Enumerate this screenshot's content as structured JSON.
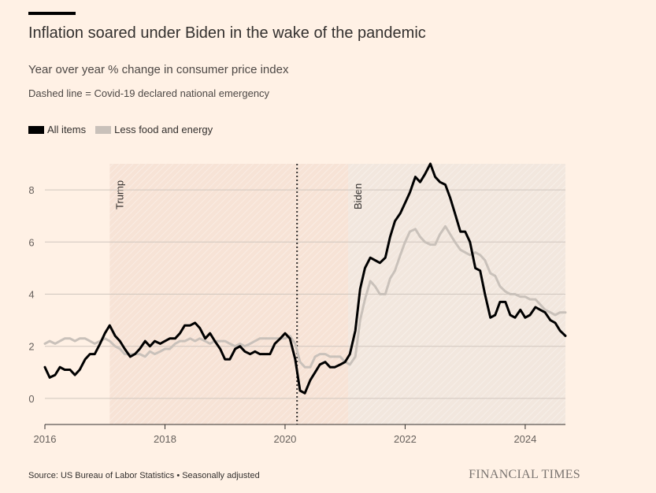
{
  "header": {
    "title": "Inflation soared under Biden in the wake of the pandemic",
    "subtitle": "Year over year % change in consumer price index",
    "note": "Dashed line = Covid-19 declared national emergency"
  },
  "footer": {
    "source": "Source: US Bureau of Labor Statistics • Seasonally adjusted",
    "brand": "FINANCIAL TIMES"
  },
  "colors": {
    "background": "#FFF1E5",
    "all_items": "#000000",
    "less_food_energy": "#C9C1BA",
    "trump_shade": "#F7E3D6",
    "biden_shade": "#F2E7DE",
    "grid": "#CFC6BE"
  },
  "chart_data": {
    "type": "line",
    "xlim": [
      2016,
      2024.67
    ],
    "ylim": [
      -1,
      9
    ],
    "x_ticks": [
      2016,
      2018,
      2020,
      2022,
      2024
    ],
    "x_tick_labels": [
      "2016",
      "2018",
      "2020",
      "2022",
      "2024"
    ],
    "y_ticks": [
      0,
      2,
      4,
      6,
      8
    ],
    "y_tick_labels": [
      "0",
      "2",
      "4",
      "6",
      "8"
    ],
    "grid": "horizontal",
    "legend": "top-left",
    "periods": [
      {
        "label": "Trump",
        "start": 2017.08,
        "end": 2021.05
      },
      {
        "label": "Biden",
        "start": 2021.05,
        "end": 2024.67
      }
    ],
    "event_line": {
      "x": 2020.2
    },
    "series": [
      {
        "name": "All items",
        "points": [
          [
            2016.0,
            1.2
          ],
          [
            2016.08,
            0.8
          ],
          [
            2016.17,
            0.9
          ],
          [
            2016.25,
            1.2
          ],
          [
            2016.33,
            1.1
          ],
          [
            2016.42,
            1.1
          ],
          [
            2016.5,
            0.9
          ],
          [
            2016.58,
            1.1
          ],
          [
            2016.67,
            1.5
          ],
          [
            2016.75,
            1.7
          ],
          [
            2016.83,
            1.7
          ],
          [
            2016.92,
            2.1
          ],
          [
            2017.0,
            2.5
          ],
          [
            2017.08,
            2.8
          ],
          [
            2017.17,
            2.4
          ],
          [
            2017.25,
            2.2
          ],
          [
            2017.33,
            1.9
          ],
          [
            2017.42,
            1.6
          ],
          [
            2017.5,
            1.7
          ],
          [
            2017.58,
            1.9
          ],
          [
            2017.67,
            2.2
          ],
          [
            2017.75,
            2.0
          ],
          [
            2017.83,
            2.2
          ],
          [
            2017.92,
            2.1
          ],
          [
            2018.0,
            2.2
          ],
          [
            2018.08,
            2.3
          ],
          [
            2018.17,
            2.3
          ],
          [
            2018.25,
            2.5
          ],
          [
            2018.33,
            2.8
          ],
          [
            2018.42,
            2.8
          ],
          [
            2018.5,
            2.9
          ],
          [
            2018.58,
            2.7
          ],
          [
            2018.67,
            2.3
          ],
          [
            2018.75,
            2.5
          ],
          [
            2018.83,
            2.2
          ],
          [
            2018.92,
            1.9
          ],
          [
            2019.0,
            1.5
          ],
          [
            2019.08,
            1.5
          ],
          [
            2019.17,
            1.9
          ],
          [
            2019.25,
            2.0
          ],
          [
            2019.33,
            1.8
          ],
          [
            2019.42,
            1.7
          ],
          [
            2019.5,
            1.8
          ],
          [
            2019.58,
            1.7
          ],
          [
            2019.67,
            1.7
          ],
          [
            2019.75,
            1.7
          ],
          [
            2019.83,
            2.1
          ],
          [
            2019.92,
            2.3
          ],
          [
            2020.0,
            2.5
          ],
          [
            2020.08,
            2.3
          ],
          [
            2020.17,
            1.5
          ],
          [
            2020.25,
            0.3
          ],
          [
            2020.33,
            0.2
          ],
          [
            2020.42,
            0.7
          ],
          [
            2020.5,
            1.0
          ],
          [
            2020.58,
            1.3
          ],
          [
            2020.67,
            1.4
          ],
          [
            2020.75,
            1.2
          ],
          [
            2020.83,
            1.2
          ],
          [
            2020.92,
            1.3
          ],
          [
            2021.0,
            1.4
          ],
          [
            2021.08,
            1.7
          ],
          [
            2021.17,
            2.6
          ],
          [
            2021.25,
            4.2
          ],
          [
            2021.33,
            5.0
          ],
          [
            2021.42,
            5.4
          ],
          [
            2021.5,
            5.3
          ],
          [
            2021.58,
            5.2
          ],
          [
            2021.67,
            5.4
          ],
          [
            2021.75,
            6.2
          ],
          [
            2021.83,
            6.8
          ],
          [
            2021.92,
            7.1
          ],
          [
            2022.0,
            7.5
          ],
          [
            2022.08,
            7.9
          ],
          [
            2022.17,
            8.5
          ],
          [
            2022.25,
            8.3
          ],
          [
            2022.33,
            8.6
          ],
          [
            2022.42,
            9.0
          ],
          [
            2022.5,
            8.5
          ],
          [
            2022.58,
            8.3
          ],
          [
            2022.67,
            8.2
          ],
          [
            2022.75,
            7.7
          ],
          [
            2022.83,
            7.1
          ],
          [
            2022.92,
            6.4
          ],
          [
            2023.0,
            6.4
          ],
          [
            2023.08,
            6.0
          ],
          [
            2023.17,
            5.0
          ],
          [
            2023.25,
            4.9
          ],
          [
            2023.33,
            4.0
          ],
          [
            2023.42,
            3.1
          ],
          [
            2023.5,
            3.2
          ],
          [
            2023.58,
            3.7
          ],
          [
            2023.67,
            3.7
          ],
          [
            2023.75,
            3.2
          ],
          [
            2023.83,
            3.1
          ],
          [
            2023.92,
            3.4
          ],
          [
            2024.0,
            3.1
          ],
          [
            2024.08,
            3.2
          ],
          [
            2024.17,
            3.5
          ],
          [
            2024.25,
            3.4
          ],
          [
            2024.33,
            3.3
          ],
          [
            2024.42,
            3.0
          ],
          [
            2024.5,
            2.9
          ],
          [
            2024.58,
            2.6
          ],
          [
            2024.67,
            2.4
          ]
        ]
      },
      {
        "name": "Less food and energy",
        "points": [
          [
            2016.0,
            2.1
          ],
          [
            2016.08,
            2.2
          ],
          [
            2016.17,
            2.1
          ],
          [
            2016.25,
            2.2
          ],
          [
            2016.33,
            2.3
          ],
          [
            2016.42,
            2.3
          ],
          [
            2016.5,
            2.2
          ],
          [
            2016.58,
            2.3
          ],
          [
            2016.67,
            2.3
          ],
          [
            2016.75,
            2.2
          ],
          [
            2016.83,
            2.1
          ],
          [
            2016.92,
            2.2
          ],
          [
            2017.0,
            2.3
          ],
          [
            2017.08,
            2.2
          ],
          [
            2017.17,
            2.0
          ],
          [
            2017.25,
            1.9
          ],
          [
            2017.33,
            1.7
          ],
          [
            2017.42,
            1.7
          ],
          [
            2017.5,
            1.7
          ],
          [
            2017.58,
            1.7
          ],
          [
            2017.67,
            1.6
          ],
          [
            2017.75,
            1.8
          ],
          [
            2017.83,
            1.7
          ],
          [
            2017.92,
            1.8
          ],
          [
            2018.0,
            1.9
          ],
          [
            2018.08,
            1.9
          ],
          [
            2018.17,
            2.1
          ],
          [
            2018.25,
            2.2
          ],
          [
            2018.33,
            2.2
          ],
          [
            2018.42,
            2.3
          ],
          [
            2018.5,
            2.2
          ],
          [
            2018.58,
            2.3
          ],
          [
            2018.67,
            2.2
          ],
          [
            2018.75,
            2.1
          ],
          [
            2018.83,
            2.2
          ],
          [
            2018.92,
            2.2
          ],
          [
            2019.0,
            2.2
          ],
          [
            2019.08,
            2.1
          ],
          [
            2019.17,
            2.0
          ],
          [
            2019.25,
            2.1
          ],
          [
            2019.33,
            2.0
          ],
          [
            2019.42,
            2.1
          ],
          [
            2019.5,
            2.2
          ],
          [
            2019.58,
            2.3
          ],
          [
            2019.67,
            2.3
          ],
          [
            2019.75,
            2.3
          ],
          [
            2019.83,
            2.3
          ],
          [
            2019.92,
            2.3
          ],
          [
            2020.0,
            2.3
          ],
          [
            2020.08,
            2.4
          ],
          [
            2020.17,
            2.1
          ],
          [
            2020.25,
            1.4
          ],
          [
            2020.33,
            1.2
          ],
          [
            2020.42,
            1.2
          ],
          [
            2020.5,
            1.6
          ],
          [
            2020.58,
            1.7
          ],
          [
            2020.67,
            1.7
          ],
          [
            2020.75,
            1.6
          ],
          [
            2020.83,
            1.6
          ],
          [
            2020.92,
            1.6
          ],
          [
            2021.0,
            1.4
          ],
          [
            2021.08,
            1.3
          ],
          [
            2021.17,
            1.6
          ],
          [
            2021.25,
            3.0
          ],
          [
            2021.33,
            3.8
          ],
          [
            2021.42,
            4.5
          ],
          [
            2021.5,
            4.3
          ],
          [
            2021.58,
            4.0
          ],
          [
            2021.67,
            4.0
          ],
          [
            2021.75,
            4.6
          ],
          [
            2021.83,
            4.9
          ],
          [
            2021.92,
            5.5
          ],
          [
            2022.0,
            6.0
          ],
          [
            2022.08,
            6.4
          ],
          [
            2022.17,
            6.5
          ],
          [
            2022.25,
            6.2
          ],
          [
            2022.33,
            6.0
          ],
          [
            2022.42,
            5.9
          ],
          [
            2022.5,
            5.9
          ],
          [
            2022.58,
            6.3
          ],
          [
            2022.67,
            6.6
          ],
          [
            2022.75,
            6.3
          ],
          [
            2022.83,
            6.0
          ],
          [
            2022.92,
            5.7
          ],
          [
            2023.0,
            5.6
          ],
          [
            2023.08,
            5.5
          ],
          [
            2023.17,
            5.6
          ],
          [
            2023.25,
            5.5
          ],
          [
            2023.33,
            5.3
          ],
          [
            2023.42,
            4.8
          ],
          [
            2023.5,
            4.7
          ],
          [
            2023.58,
            4.3
          ],
          [
            2023.67,
            4.1
          ],
          [
            2023.75,
            4.0
          ],
          [
            2023.83,
            4.0
          ],
          [
            2023.92,
            3.9
          ],
          [
            2024.0,
            3.9
          ],
          [
            2024.08,
            3.8
          ],
          [
            2024.17,
            3.8
          ],
          [
            2024.25,
            3.6
          ],
          [
            2024.33,
            3.4
          ],
          [
            2024.42,
            3.3
          ],
          [
            2024.5,
            3.2
          ],
          [
            2024.58,
            3.3
          ],
          [
            2024.67,
            3.3
          ]
        ]
      }
    ]
  }
}
